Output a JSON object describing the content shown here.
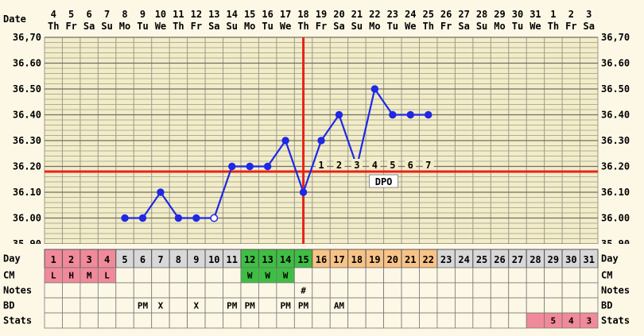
{
  "chart_data": {
    "type": "line",
    "title": "",
    "header_label": "Date",
    "dates": [
      "4",
      "5",
      "6",
      "7",
      "8",
      "9",
      "10",
      "11",
      "12",
      "13",
      "14",
      "15",
      "16",
      "17",
      "18",
      "19",
      "20",
      "21",
      "22",
      "23",
      "24",
      "25",
      "26",
      "27",
      "28",
      "29",
      "30",
      "31",
      "1",
      "2",
      "3"
    ],
    "weekdays": [
      "Th",
      "Fr",
      "Sa",
      "Su",
      "Mo",
      "Tu",
      "We",
      "Th",
      "Fr",
      "Sa",
      "Su",
      "Mo",
      "Tu",
      "We",
      "Th",
      "Fr",
      "Sa",
      "Su",
      "Mo",
      "Tu",
      "We",
      "Th",
      "Fr",
      "Sa",
      "Su",
      "Mo",
      "Tu",
      "We",
      "Th",
      "Fr",
      "Sa"
    ],
    "y_ticks": [
      "35,90",
      "36.00",
      "36.10",
      "36.20",
      "36.30",
      "36.40",
      "36.50",
      "36.60",
      "36,70"
    ],
    "ylim": [
      35.9,
      36.7
    ],
    "series": [
      {
        "values": [
          null,
          null,
          null,
          null,
          36.0,
          36.0,
          36.1,
          36.0,
          36.0,
          36.0,
          36.2,
          36.2,
          36.2,
          36.3,
          36.1,
          36.3,
          36.4,
          36.2,
          36.5,
          36.4,
          36.4,
          36.4,
          null,
          null,
          null,
          null,
          null,
          null,
          null,
          null,
          null
        ],
        "open_point_day": 10,
        "color": "#1e28e6"
      }
    ],
    "coverline": 36.18,
    "ovulation_day": 15,
    "dpo_numbers": [
      "1",
      "2",
      "3",
      "4",
      "5",
      "6",
      "7"
    ],
    "dpo_label": "DPO",
    "grid": true,
    "day_row_label": "Day",
    "days": [
      "1",
      "2",
      "3",
      "4",
      "5",
      "6",
      "7",
      "8",
      "9",
      "10",
      "11",
      "12",
      "13",
      "14",
      "15",
      "16",
      "17",
      "18",
      "19",
      "20",
      "21",
      "22",
      "23",
      "24",
      "25",
      "26",
      "27",
      "28",
      "29",
      "30",
      "31"
    ],
    "row_labels": [
      "CM",
      "Notes",
      "BD",
      "Stats"
    ],
    "cm": {
      "1": "L",
      "2": "H",
      "3": "M",
      "4": "L",
      "12": "W",
      "13": "W",
      "14": "W"
    },
    "notes": {
      "15": "#"
    },
    "bd": {
      "6": "PM",
      "7": "X",
      "9": "X",
      "11": "PM",
      "12": "PM",
      "14": "PM",
      "15": "PM",
      "17": "AM"
    },
    "stats": {
      "29": "5",
      "30": "4",
      "31": "3"
    },
    "colors": {
      "background": "#fdf8e6",
      "plot_bg": "#f2ecc8",
      "grid": "#9a9a8a",
      "red_line": "#e8221a",
      "day_cell_default": "#d8d8d8",
      "fertile_green": "#3fbe44",
      "luteal_orange": "#f8c387",
      "period_pink": "#f08a9a",
      "stats_pink": "#f08a9a",
      "row_bg": "#fdf8e6"
    }
  }
}
